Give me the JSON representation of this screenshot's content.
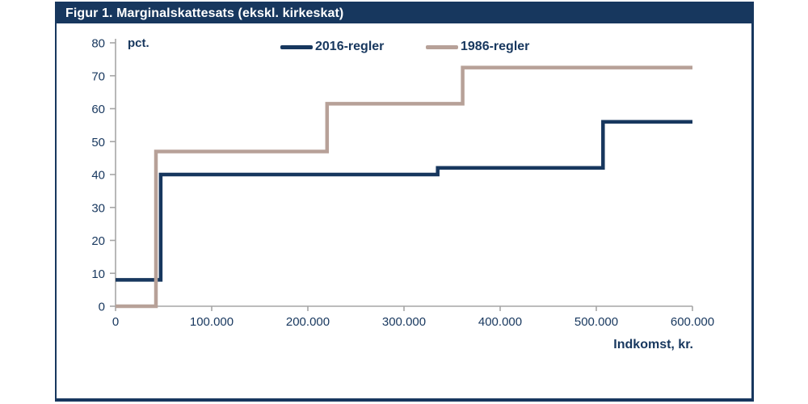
{
  "colors": {
    "navy": "#17375e",
    "tan": "#b7a198",
    "axis": "#a6a6a6",
    "title_text": "#ffffff"
  },
  "chart_data": {
    "type": "line",
    "subtype": "step",
    "title": "Figur 1. Marginalskattesats (ekskl. kirkeskat)",
    "ylabel": "pct.",
    "xlabel": "Indkomst, kr.",
    "xlim": [
      0,
      600000
    ],
    "ylim": [
      0,
      80
    ],
    "grid": false,
    "legend_position": "top-center",
    "x_ticks": {
      "values": [
        0,
        100000,
        200000,
        300000,
        400000,
        500000,
        600000
      ],
      "labels": [
        "0",
        "100.000",
        "200.000",
        "300.000",
        "400.000",
        "500.000",
        "600.000"
      ]
    },
    "y_ticks": {
      "values": [
        0,
        10,
        20,
        30,
        40,
        50,
        60,
        70,
        80
      ],
      "labels": [
        "0",
        "10",
        "20",
        "30",
        "40",
        "50",
        "60",
        "70",
        "80"
      ]
    },
    "series": [
      {
        "name": "2016-regler",
        "color": "#17375e",
        "points": [
          [
            0,
            8
          ],
          [
            47000,
            8
          ],
          [
            47000,
            40
          ],
          [
            335000,
            40
          ],
          [
            335000,
            42
          ],
          [
            507000,
            42
          ],
          [
            507000,
            56
          ],
          [
            600000,
            56
          ]
        ]
      },
      {
        "name": "1986-regler",
        "color": "#b7a198",
        "points": [
          [
            0,
            0
          ],
          [
            42000,
            0
          ],
          [
            42000,
            47
          ],
          [
            220000,
            47
          ],
          [
            220000,
            61.5
          ],
          [
            361000,
            61.5
          ],
          [
            361000,
            72.5
          ],
          [
            600000,
            72.5
          ]
        ]
      }
    ]
  }
}
